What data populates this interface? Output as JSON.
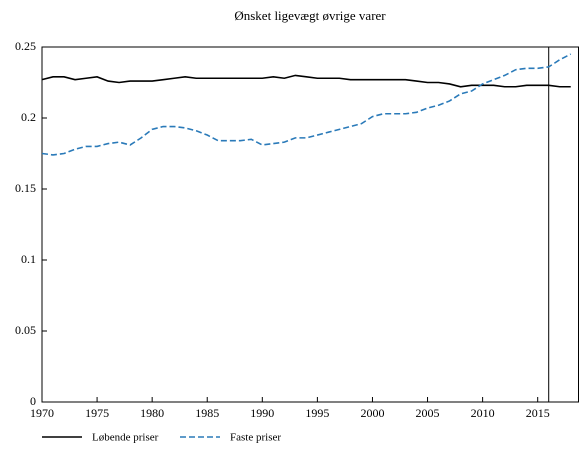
{
  "chart_data": {
    "type": "line",
    "title": "Ønsket ligevægt øvrige varer",
    "x": [
      1970,
      1971,
      1972,
      1973,
      1974,
      1975,
      1976,
      1977,
      1978,
      1979,
      1980,
      1981,
      1982,
      1983,
      1984,
      1985,
      1986,
      1987,
      1988,
      1989,
      1990,
      1991,
      1992,
      1993,
      1994,
      1995,
      1996,
      1997,
      1998,
      1999,
      2000,
      2001,
      2002,
      2003,
      2004,
      2005,
      2006,
      2007,
      2008,
      2009,
      2010,
      2011,
      2012,
      2013,
      2014,
      2015,
      2016,
      2017,
      2018
    ],
    "series": [
      {
        "name": "Løbende priser",
        "color": "#000000",
        "dash": false,
        "values": [
          0.227,
          0.229,
          0.229,
          0.227,
          0.228,
          0.229,
          0.226,
          0.225,
          0.226,
          0.226,
          0.226,
          0.227,
          0.228,
          0.229,
          0.228,
          0.228,
          0.228,
          0.228,
          0.228,
          0.228,
          0.228,
          0.229,
          0.228,
          0.23,
          0.229,
          0.228,
          0.228,
          0.228,
          0.227,
          0.227,
          0.227,
          0.227,
          0.227,
          0.227,
          0.226,
          0.225,
          0.225,
          0.224,
          0.222,
          0.223,
          0.223,
          0.223,
          0.222,
          0.222,
          0.223,
          0.223,
          0.223,
          0.222,
          0.222
        ]
      },
      {
        "name": "Faste priser",
        "color": "#2a7ab9",
        "dash": true,
        "values": [
          0.175,
          0.174,
          0.175,
          0.178,
          0.18,
          0.18,
          0.182,
          0.183,
          0.181,
          0.186,
          0.192,
          0.194,
          0.194,
          0.193,
          0.191,
          0.188,
          0.184,
          0.184,
          0.184,
          0.185,
          0.181,
          0.182,
          0.183,
          0.186,
          0.186,
          0.188,
          0.19,
          0.192,
          0.194,
          0.196,
          0.201,
          0.203,
          0.203,
          0.203,
          0.204,
          0.207,
          0.209,
          0.212,
          0.217,
          0.219,
          0.224,
          0.227,
          0.23,
          0.234,
          0.235,
          0.235,
          0.236,
          0.241,
          0.245
        ]
      }
    ],
    "xlim": [
      1970,
      2018.75
    ],
    "xticks": [
      1970,
      1975,
      1980,
      1985,
      1990,
      1995,
      2000,
      2005,
      2010,
      2015
    ],
    "ylim": [
      0,
      0.25
    ],
    "yticks": [
      0,
      0.05,
      0.1,
      0.15,
      0.2,
      0.25
    ],
    "vlines": [
      2016
    ],
    "grid": false,
    "legend": "bottom"
  }
}
